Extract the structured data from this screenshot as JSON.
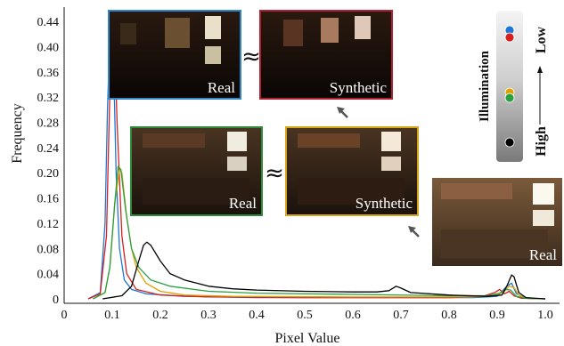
{
  "chart_data": {
    "type": "line",
    "xlabel": "Pixel Value",
    "ylabel": "Frequency",
    "xlim": [
      0,
      1.0
    ],
    "ylim": [
      0,
      0.45
    ],
    "x_ticks": [
      "0",
      "0.1",
      "0.2",
      "0.3",
      "0.4",
      "0.5",
      "0.6",
      "0.7",
      "0.8",
      "0.9",
      "1.0"
    ],
    "y_ticks": [
      "0",
      "0.04",
      "0.08",
      "0.12",
      "0.16",
      "0.20",
      "0.24",
      "0.28",
      "0.32",
      "0.36",
      "0.40",
      "0.44"
    ],
    "grid": false,
    "series": [
      {
        "color": "#1f77d4",
        "points": [
          [
            0.05,
            0
          ],
          [
            0.075,
            0.01
          ],
          [
            0.085,
            0.12
          ],
          [
            0.09,
            0.3
          ],
          [
            0.095,
            0.42
          ],
          [
            0.098,
            0.445
          ],
          [
            0.102,
            0.4
          ],
          [
            0.108,
            0.2
          ],
          [
            0.115,
            0.08
          ],
          [
            0.125,
            0.03
          ],
          [
            0.14,
            0.015
          ],
          [
            0.17,
            0.008
          ],
          [
            0.25,
            0.004
          ],
          [
            0.4,
            0.002
          ],
          [
            0.6,
            0.002
          ],
          [
            0.85,
            0.002
          ],
          [
            0.9,
            0.004
          ],
          [
            0.92,
            0.02
          ],
          [
            0.93,
            0.025
          ],
          [
            0.94,
            0.008
          ],
          [
            0.96,
            0.001
          ],
          [
            1.0,
            0
          ]
        ]
      },
      {
        "color": "#d62020",
        "points": [
          [
            0.05,
            0
          ],
          [
            0.075,
            0.008
          ],
          [
            0.088,
            0.1
          ],
          [
            0.094,
            0.3
          ],
          [
            0.1,
            0.44
          ],
          [
            0.104,
            0.43
          ],
          [
            0.11,
            0.28
          ],
          [
            0.12,
            0.1
          ],
          [
            0.13,
            0.04
          ],
          [
            0.15,
            0.015
          ],
          [
            0.2,
            0.006
          ],
          [
            0.3,
            0.003
          ],
          [
            0.5,
            0.002
          ],
          [
            0.8,
            0.002
          ],
          [
            0.87,
            0.004
          ],
          [
            0.895,
            0.01
          ],
          [
            0.905,
            0.015
          ],
          [
            0.915,
            0.008
          ],
          [
            0.925,
            0.012
          ],
          [
            0.935,
            0.005
          ],
          [
            0.95,
            0.001
          ],
          [
            1.0,
            0
          ]
        ]
      },
      {
        "color": "#e0a000",
        "points": [
          [
            0.06,
            0
          ],
          [
            0.085,
            0.01
          ],
          [
            0.095,
            0.05
          ],
          [
            0.105,
            0.15
          ],
          [
            0.115,
            0.205
          ],
          [
            0.12,
            0.2
          ],
          [
            0.13,
            0.13
          ],
          [
            0.14,
            0.08
          ],
          [
            0.15,
            0.05
          ],
          [
            0.17,
            0.025
          ],
          [
            0.2,
            0.012
          ],
          [
            0.25,
            0.006
          ],
          [
            0.35,
            0.004
          ],
          [
            0.6,
            0.003
          ],
          [
            0.85,
            0.003
          ],
          [
            0.9,
            0.006
          ],
          [
            0.915,
            0.012
          ],
          [
            0.925,
            0.02
          ],
          [
            0.935,
            0.018
          ],
          [
            0.945,
            0.006
          ],
          [
            0.96,
            0.001
          ],
          [
            1.0,
            0
          ]
        ]
      },
      {
        "color": "#2aa040",
        "points": [
          [
            0.06,
            0
          ],
          [
            0.085,
            0.01
          ],
          [
            0.095,
            0.05
          ],
          [
            0.105,
            0.15
          ],
          [
            0.112,
            0.21
          ],
          [
            0.118,
            0.205
          ],
          [
            0.128,
            0.14
          ],
          [
            0.14,
            0.08
          ],
          [
            0.155,
            0.05
          ],
          [
            0.18,
            0.03
          ],
          [
            0.22,
            0.02
          ],
          [
            0.3,
            0.012
          ],
          [
            0.4,
            0.009
          ],
          [
            0.6,
            0.007
          ],
          [
            0.8,
            0.005
          ],
          [
            0.88,
            0.005
          ],
          [
            0.905,
            0.009
          ],
          [
            0.918,
            0.015
          ],
          [
            0.928,
            0.014
          ],
          [
            0.94,
            0.004
          ],
          [
            0.96,
            0.001
          ],
          [
            1.0,
            0
          ]
        ]
      },
      {
        "color": "#000000",
        "points": [
          [
            0.08,
            0
          ],
          [
            0.12,
            0.005
          ],
          [
            0.14,
            0.02
          ],
          [
            0.155,
            0.06
          ],
          [
            0.165,
            0.085
          ],
          [
            0.172,
            0.09
          ],
          [
            0.18,
            0.085
          ],
          [
            0.2,
            0.06
          ],
          [
            0.22,
            0.04
          ],
          [
            0.25,
            0.03
          ],
          [
            0.3,
            0.02
          ],
          [
            0.35,
            0.016
          ],
          [
            0.4,
            0.014
          ],
          [
            0.5,
            0.012
          ],
          [
            0.6,
            0.011
          ],
          [
            0.65,
            0.011
          ],
          [
            0.675,
            0.013
          ],
          [
            0.69,
            0.02
          ],
          [
            0.7,
            0.017
          ],
          [
            0.72,
            0.01
          ],
          [
            0.8,
            0.006
          ],
          [
            0.88,
            0.004
          ],
          [
            0.91,
            0.006
          ],
          [
            0.92,
            0.02
          ],
          [
            0.93,
            0.038
          ],
          [
            0.935,
            0.035
          ],
          [
            0.945,
            0.01
          ],
          [
            0.96,
            0.002
          ],
          [
            1.0,
            0
          ]
        ]
      }
    ]
  },
  "annotations": {
    "approx_symbol": "≈",
    "thumbnails": [
      {
        "label": "Real",
        "border": "#2f86c8"
      },
      {
        "label": "Synthetic",
        "border": "#b02030"
      },
      {
        "label": "Real",
        "border": "#2e8b3c"
      },
      {
        "label": "Synthetic",
        "border": "#d9a31a"
      },
      {
        "label": "Real",
        "border": "none"
      }
    ]
  },
  "legend": {
    "title": "Illumination",
    "low_label": "Low",
    "high_label": "High",
    "dots": [
      "#1f77d4",
      "#d62020",
      "#e0a000",
      "#2aa040",
      "#000000"
    ]
  }
}
